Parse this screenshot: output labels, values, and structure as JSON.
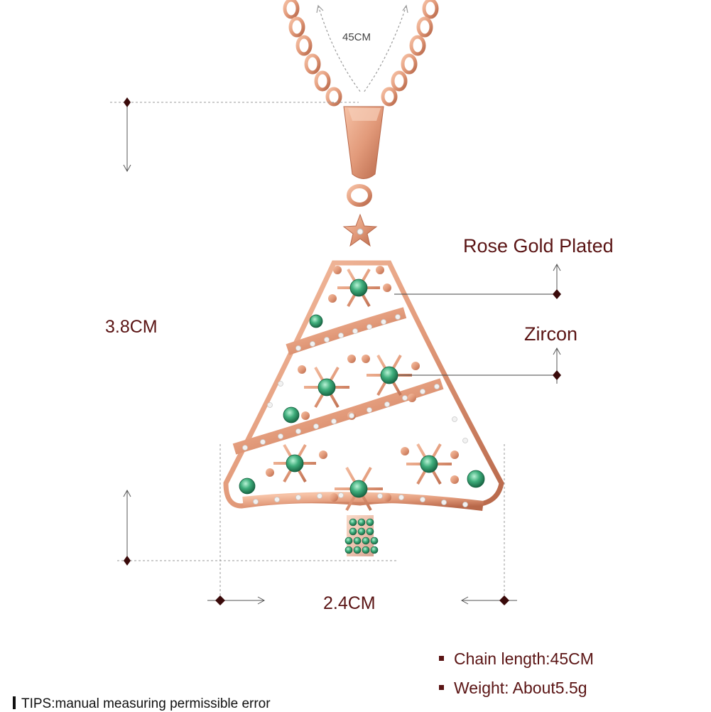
{
  "labels": {
    "chain_length": "45CM",
    "height": "3.8CM",
    "width": "2.4CM",
    "material": "Rose Gold Plated",
    "stone": "Zircon"
  },
  "specs": [
    "Chain length:45CM",
    "Weight: About5.5g"
  ],
  "tips": "TIPS:manual measuring permissible error",
  "colors": {
    "rose_gold": "#e29a7a",
    "rose_gold_dark": "#b8684a",
    "emerald": "#2f9a6a",
    "text_dark_red": "#5a1414",
    "marker": "#3a0a0a",
    "guide": "#9a9a9a"
  }
}
